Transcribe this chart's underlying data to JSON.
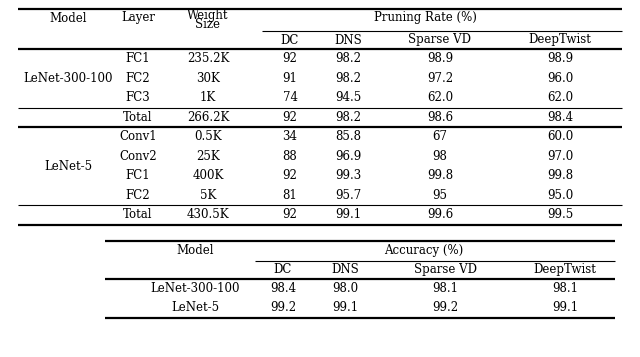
{
  "table1": {
    "rows": [
      [
        "LeNet-300-100",
        "FC1",
        "235.2K",
        "92",
        "98.2",
        "98.9",
        "98.9"
      ],
      [
        "",
        "FC2",
        "30K",
        "91",
        "98.2",
        "97.2",
        "96.0"
      ],
      [
        "",
        "FC3",
        "1K",
        "74",
        "94.5",
        "62.0",
        "62.0"
      ],
      [
        "",
        "Total",
        "266.2K",
        "92",
        "98.2",
        "98.6",
        "98.4"
      ],
      [
        "LeNet-5",
        "Conv1",
        "0.5K",
        "34",
        "85.8",
        "67",
        "60.0"
      ],
      [
        "",
        "Conv2",
        "25K",
        "88",
        "96.9",
        "98",
        "97.0"
      ],
      [
        "",
        "FC1",
        "400K",
        "92",
        "99.3",
        "99.8",
        "99.8"
      ],
      [
        "",
        "FC2",
        "5K",
        "81",
        "95.7",
        "95",
        "95.0"
      ],
      [
        "",
        "Total",
        "430.5K",
        "92",
        "99.1",
        "99.6",
        "99.5"
      ]
    ],
    "total_rows": [
      3,
      8
    ]
  },
  "table2": {
    "rows": [
      [
        "LeNet-300-100",
        "98.4",
        "98.0",
        "98.1",
        "98.1"
      ],
      [
        "LeNet-5",
        "99.2",
        "99.1",
        "99.2",
        "99.1"
      ]
    ]
  },
  "bg_color": "#ffffff",
  "fontsize": 8.5,
  "font_family": "DejaVu Serif"
}
